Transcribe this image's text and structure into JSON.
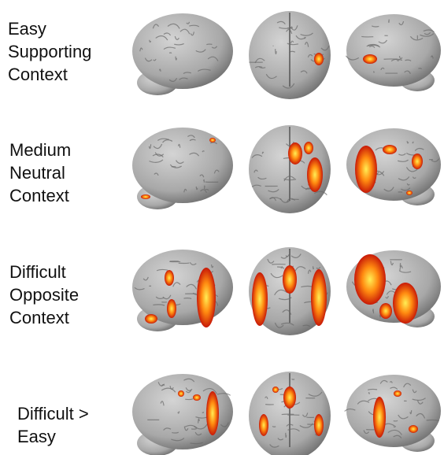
{
  "rows": [
    {
      "label": [
        "Easy",
        "Supporting",
        "Context"
      ]
    },
    {
      "label": [
        "Medium",
        "Neutral",
        "Context"
      ]
    },
    {
      "label": [
        "Difficult",
        "Opposite",
        "Context"
      ]
    },
    {
      "label": [
        "Difficult >",
        "Easy"
      ]
    }
  ]
}
